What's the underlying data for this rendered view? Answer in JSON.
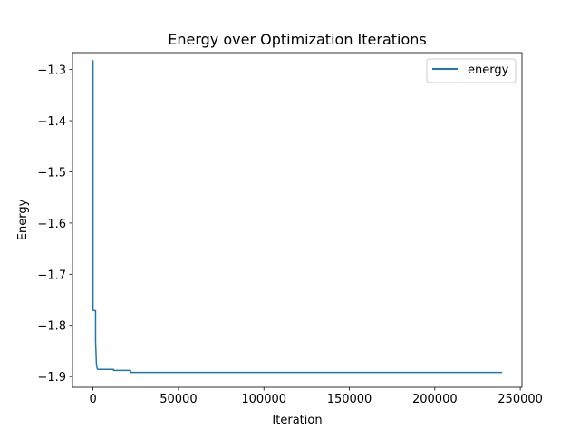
{
  "chart_data": {
    "type": "line",
    "title": "Energy over Optimization Iterations",
    "xlabel": "Iteration",
    "ylabel": "Energy",
    "xlim": [
      -12000,
      251000
    ],
    "ylim": [
      -1.921,
      -1.267
    ],
    "xticks": [
      0,
      50000,
      100000,
      150000,
      200000,
      250000
    ],
    "xtick_labels": [
      "0",
      "50000",
      "100000",
      "150000",
      "200000",
      "250000"
    ],
    "yticks": [
      -1.3,
      -1.4,
      -1.5,
      -1.6,
      -1.7,
      -1.8,
      -1.9
    ],
    "ytick_labels": [
      "−1.3",
      "−1.4",
      "−1.5",
      "−1.6",
      "−1.7",
      "−1.8",
      "−1.9"
    ],
    "grid": false,
    "legend_position": "top-right",
    "series": [
      {
        "name": "energy",
        "color": "#1f77b4",
        "x": [
          0,
          0,
          200,
          1500,
          1500,
          2000,
          2400,
          2800,
          3000,
          12000,
          12000,
          22000,
          22000,
          239000
        ],
        "y": [
          -1.283,
          -1.768,
          -1.771,
          -1.771,
          -1.83,
          -1.875,
          -1.884,
          -1.886,
          -1.886,
          -1.886,
          -1.888,
          -1.888,
          -1.892,
          -1.892
        ]
      }
    ]
  }
}
